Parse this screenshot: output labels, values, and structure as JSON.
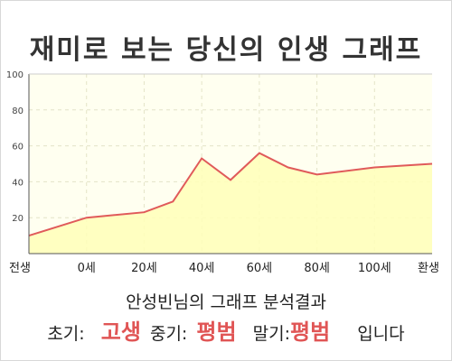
{
  "title": "재미로 보는 당신의 인생 그래프",
  "summary": "안성빈님의 그래프 분석결과",
  "results": {
    "early_label": "초기:",
    "early_value": "고생",
    "mid_label": "중기:",
    "mid_value": "평범",
    "late_label": "말기:",
    "late_value": "평범",
    "suffix": "입니다"
  },
  "colors": {
    "line": "#e05a5a",
    "fill": "#ffffb8",
    "plot_bg": "#fffff0",
    "accent": "#e05555"
  },
  "chart_data": {
    "type": "area",
    "title": "재미로 보는 당신의 인생 그래프",
    "xlabel": "",
    "ylabel": "",
    "ylim": [
      0,
      100
    ],
    "yticks": [
      20,
      40,
      60,
      80,
      100
    ],
    "x_tick_labels": [
      "전생",
      "0세",
      "20세",
      "40세",
      "60세",
      "80세",
      "100세",
      "환생"
    ],
    "grid": true,
    "points": [
      {
        "x": 0,
        "y": 10
      },
      {
        "x": 1,
        "y": 20
      },
      {
        "x": 2,
        "y": 23
      },
      {
        "x": 2.5,
        "y": 29
      },
      {
        "x": 3,
        "y": 53
      },
      {
        "x": 3.5,
        "y": 41
      },
      {
        "x": 4,
        "y": 56
      },
      {
        "x": 4.5,
        "y": 48
      },
      {
        "x": 5,
        "y": 44
      },
      {
        "x": 6,
        "y": 48
      },
      {
        "x": 7,
        "y": 50
      }
    ]
  }
}
